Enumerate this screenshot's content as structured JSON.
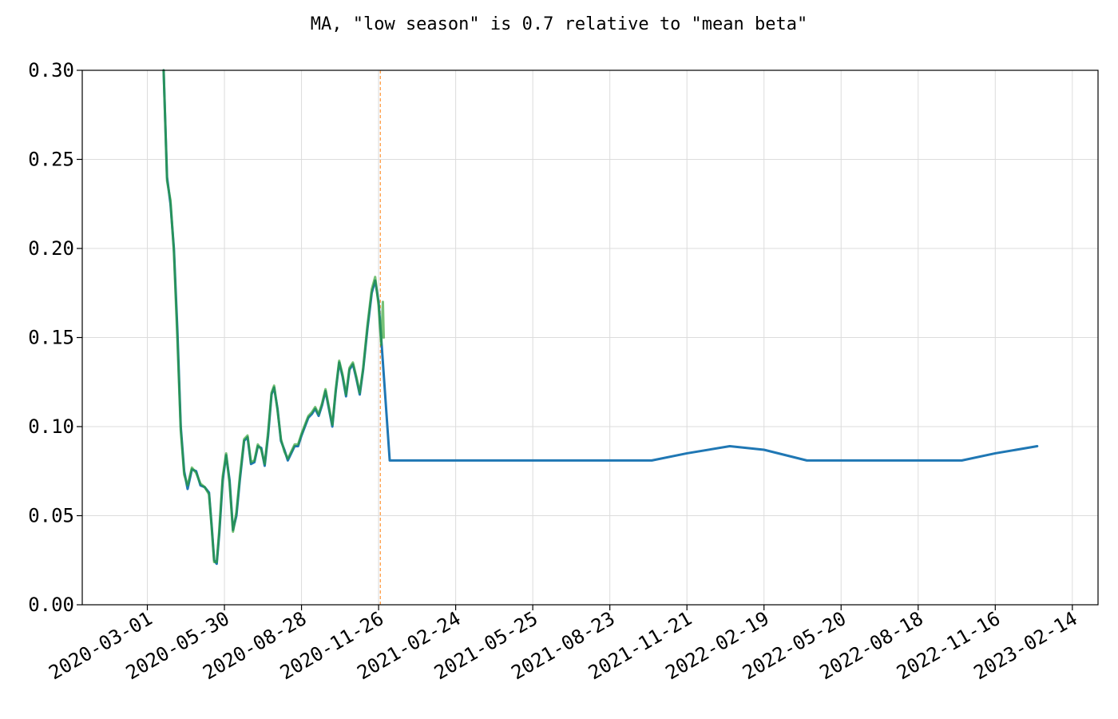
{
  "chart_data": {
    "type": "line",
    "title": "MA, \"low season\" is 0.7 relative to \"mean beta\"",
    "xlabel": "",
    "ylabel": "",
    "x_axis": {
      "type": "date",
      "range": [
        "2019-12-16",
        "2023-03-16"
      ]
    },
    "ylim": [
      0.0,
      0.3
    ],
    "grid": true,
    "legend": "none",
    "x_ticks": [
      "2020-03-01",
      "2020-05-30",
      "2020-08-28",
      "2020-11-26",
      "2021-02-24",
      "2021-05-25",
      "2021-08-23",
      "2021-11-21",
      "2022-02-19",
      "2022-05-20",
      "2022-08-18",
      "2022-11-16",
      "2023-02-14"
    ],
    "y_ticks": [
      0.0,
      0.05,
      0.1,
      0.15,
      0.2,
      0.25,
      0.3
    ],
    "y_tick_labels": [
      "0.00",
      "0.05",
      "0.10",
      "0.15",
      "0.20",
      "0.25",
      "0.30"
    ],
    "annotations": [
      {
        "type": "vline",
        "x": "2020-11-28",
        "color": "#ff7f0e",
        "style": "dashed"
      }
    ],
    "series": [
      {
        "color": "#1f77b4",
        "points": [
          [
            "2020-03-20",
            0.3
          ],
          [
            "2020-03-24",
            0.24
          ],
          [
            "2020-03-28",
            0.225
          ],
          [
            "2020-04-01",
            0.2
          ],
          [
            "2020-04-05",
            0.155
          ],
          [
            "2020-04-09",
            0.1
          ],
          [
            "2020-04-13",
            0.075
          ],
          [
            "2020-04-17",
            0.065
          ],
          [
            "2020-04-22",
            0.076
          ],
          [
            "2020-04-27",
            0.075
          ],
          [
            "2020-05-02",
            0.067
          ],
          [
            "2020-05-07",
            0.066
          ],
          [
            "2020-05-12",
            0.063
          ],
          [
            "2020-05-15",
            0.045
          ],
          [
            "2020-05-18",
            0.025
          ],
          [
            "2020-05-21",
            0.023
          ],
          [
            "2020-05-24",
            0.04
          ],
          [
            "2020-05-28",
            0.07
          ],
          [
            "2020-06-01",
            0.084
          ],
          [
            "2020-06-05",
            0.07
          ],
          [
            "2020-06-09",
            0.042
          ],
          [
            "2020-06-13",
            0.05
          ],
          [
            "2020-06-17",
            0.07
          ],
          [
            "2020-06-22",
            0.092
          ],
          [
            "2020-06-26",
            0.094
          ],
          [
            "2020-06-30",
            0.079
          ],
          [
            "2020-07-04",
            0.08
          ],
          [
            "2020-07-08",
            0.089
          ],
          [
            "2020-07-12",
            0.088
          ],
          [
            "2020-07-16",
            0.078
          ],
          [
            "2020-07-20",
            0.095
          ],
          [
            "2020-07-24",
            0.118
          ],
          [
            "2020-07-27",
            0.122
          ],
          [
            "2020-07-31",
            0.11
          ],
          [
            "2020-08-04",
            0.092
          ],
          [
            "2020-08-08",
            0.087
          ],
          [
            "2020-08-12",
            0.081
          ],
          [
            "2020-08-16",
            0.085
          ],
          [
            "2020-08-20",
            0.089
          ],
          [
            "2020-08-24",
            0.089
          ],
          [
            "2020-08-28",
            0.095
          ],
          [
            "2020-09-01",
            0.1
          ],
          [
            "2020-09-05",
            0.105
          ],
          [
            "2020-09-09",
            0.107
          ],
          [
            "2020-09-13",
            0.11
          ],
          [
            "2020-09-17",
            0.106
          ],
          [
            "2020-09-21",
            0.112
          ],
          [
            "2020-09-25",
            0.12
          ],
          [
            "2020-09-29",
            0.11
          ],
          [
            "2020-10-03",
            0.1
          ],
          [
            "2020-10-07",
            0.12
          ],
          [
            "2020-10-11",
            0.136
          ],
          [
            "2020-10-15",
            0.128
          ],
          [
            "2020-10-19",
            0.117
          ],
          [
            "2020-10-23",
            0.132
          ],
          [
            "2020-10-27",
            0.135
          ],
          [
            "2020-10-31",
            0.127
          ],
          [
            "2020-11-04",
            0.118
          ],
          [
            "2020-11-08",
            0.132
          ],
          [
            "2020-11-13",
            0.155
          ],
          [
            "2020-11-18",
            0.175
          ],
          [
            "2020-11-22",
            0.182
          ],
          [
            "2020-11-26",
            0.17
          ],
          [
            "2020-11-29",
            0.15
          ],
          [
            "2020-12-09",
            0.081
          ],
          [
            "2021-10-11",
            0.081
          ],
          [
            "2021-11-21",
            0.085
          ],
          [
            "2022-01-10",
            0.089
          ],
          [
            "2022-02-19",
            0.087
          ],
          [
            "2022-04-10",
            0.081
          ],
          [
            "2022-10-08",
            0.081
          ],
          [
            "2022-11-16",
            0.085
          ],
          [
            "2023-01-04",
            0.089
          ]
        ]
      },
      {
        "color": "#2ca02c",
        "points": [
          [
            "2020-03-20",
            0.3
          ],
          [
            "2020-03-24",
            0.238
          ],
          [
            "2020-03-28",
            0.227
          ],
          [
            "2020-04-01",
            0.198
          ],
          [
            "2020-04-05",
            0.15
          ],
          [
            "2020-04-09",
            0.098
          ],
          [
            "2020-04-13",
            0.073
          ],
          [
            "2020-04-17",
            0.067
          ],
          [
            "2020-04-22",
            0.077
          ],
          [
            "2020-04-27",
            0.074
          ],
          [
            "2020-05-02",
            0.068
          ],
          [
            "2020-05-07",
            0.066
          ],
          [
            "2020-05-12",
            0.062
          ],
          [
            "2020-05-15",
            0.044
          ],
          [
            "2020-05-18",
            0.024
          ],
          [
            "2020-05-21",
            0.024
          ],
          [
            "2020-05-24",
            0.042
          ],
          [
            "2020-05-28",
            0.072
          ],
          [
            "2020-06-01",
            0.085
          ],
          [
            "2020-06-05",
            0.068
          ],
          [
            "2020-06-09",
            0.041
          ],
          [
            "2020-06-13",
            0.052
          ],
          [
            "2020-06-17",
            0.072
          ],
          [
            "2020-06-22",
            0.093
          ],
          [
            "2020-06-26",
            0.095
          ],
          [
            "2020-06-30",
            0.08
          ],
          [
            "2020-07-04",
            0.081
          ],
          [
            "2020-07-08",
            0.09
          ],
          [
            "2020-07-12",
            0.087
          ],
          [
            "2020-07-16",
            0.079
          ],
          [
            "2020-07-20",
            0.097
          ],
          [
            "2020-07-24",
            0.119
          ],
          [
            "2020-07-27",
            0.123
          ],
          [
            "2020-07-31",
            0.109
          ],
          [
            "2020-08-04",
            0.093
          ],
          [
            "2020-08-08",
            0.086
          ],
          [
            "2020-08-12",
            0.082
          ],
          [
            "2020-08-16",
            0.086
          ],
          [
            "2020-08-20",
            0.09
          ],
          [
            "2020-08-24",
            0.09
          ],
          [
            "2020-08-28",
            0.096
          ],
          [
            "2020-09-01",
            0.101
          ],
          [
            "2020-09-05",
            0.106
          ],
          [
            "2020-09-09",
            0.108
          ],
          [
            "2020-09-13",
            0.111
          ],
          [
            "2020-09-17",
            0.107
          ],
          [
            "2020-09-21",
            0.113
          ],
          [
            "2020-09-25",
            0.121
          ],
          [
            "2020-09-29",
            0.111
          ],
          [
            "2020-10-03",
            0.101
          ],
          [
            "2020-10-07",
            0.121
          ],
          [
            "2020-10-11",
            0.137
          ],
          [
            "2020-10-15",
            0.129
          ],
          [
            "2020-10-19",
            0.118
          ],
          [
            "2020-10-23",
            0.133
          ],
          [
            "2020-10-27",
            0.136
          ],
          [
            "2020-10-31",
            0.128
          ],
          [
            "2020-11-04",
            0.119
          ],
          [
            "2020-11-08",
            0.133
          ],
          [
            "2020-11-13",
            0.157
          ],
          [
            "2020-11-18",
            0.177
          ],
          [
            "2020-11-22",
            0.184
          ],
          [
            "2020-11-26",
            0.168
          ],
          [
            "2020-11-29",
            0.146
          ],
          [
            "2020-12-01",
            0.17
          ],
          [
            "2020-12-02",
            0.15
          ]
        ]
      }
    ]
  }
}
